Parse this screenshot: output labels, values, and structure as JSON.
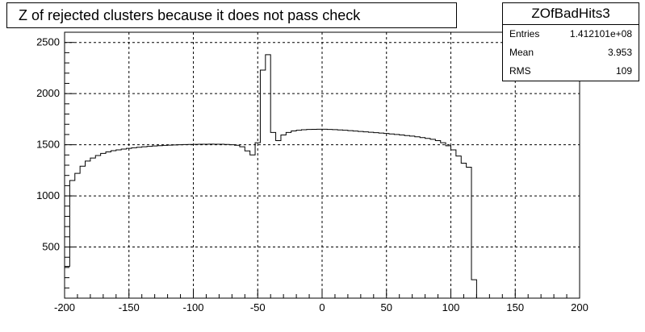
{
  "title": "Z of rejected clusters  because it does not pass check",
  "stats": {
    "name": "ZOfBadHits3",
    "rows": [
      {
        "label": "Entries",
        "value": "1.412101e+08"
      },
      {
        "label": "Mean",
        "value": "3.953"
      },
      {
        "label": "RMS",
        "value": "109"
      }
    ]
  },
  "chart_data": {
    "type": "bar",
    "style": "step-histogram",
    "title": "Z of rejected clusters  because it does not pass check",
    "xlabel": "",
    "ylabel": "",
    "xlim": [
      -200,
      200
    ],
    "ylim": [
      0,
      2600
    ],
    "grid": true,
    "x_ticks": [
      -200,
      -150,
      -100,
      -50,
      0,
      50,
      100,
      150,
      200
    ],
    "y_ticks": [
      500,
      1000,
      1500,
      2000,
      2500
    ],
    "x_tick_labels": [
      "-200",
      "-150",
      "-100",
      "-50",
      "0",
      "50",
      "100",
      "150",
      "200"
    ],
    "y_tick_labels": [
      "500",
      "1000",
      "1500",
      "2000",
      "2500"
    ],
    "bin_width": 4,
    "bin_start": -200,
    "values": [
      310,
      1150,
      1220,
      1290,
      1340,
      1370,
      1395,
      1415,
      1430,
      1442,
      1450,
      1458,
      1464,
      1470,
      1475,
      1480,
      1484,
      1488,
      1491,
      1494,
      1496,
      1498,
      1500,
      1502,
      1503,
      1504,
      1505,
      1505,
      1506,
      1505,
      1505,
      1503,
      1500,
      1495,
      1480,
      1440,
      1400,
      1520,
      2230,
      2380,
      1620,
      1540,
      1595,
      1620,
      1635,
      1642,
      1647,
      1650,
      1651,
      1652,
      1652,
      1650,
      1648,
      1645,
      1642,
      1638,
      1634,
      1630,
      1626,
      1622,
      1618,
      1614,
      1610,
      1605,
      1600,
      1595,
      1590,
      1585,
      1578,
      1570,
      1562,
      1553,
      1540,
      1520,
      1490,
      1450,
      1390,
      1320,
      1280,
      180,
      0,
      0,
      0,
      0,
      0,
      0,
      0,
      0,
      0,
      0,
      0,
      0,
      0,
      0,
      0,
      0,
      0,
      0,
      0,
      0
    ]
  }
}
